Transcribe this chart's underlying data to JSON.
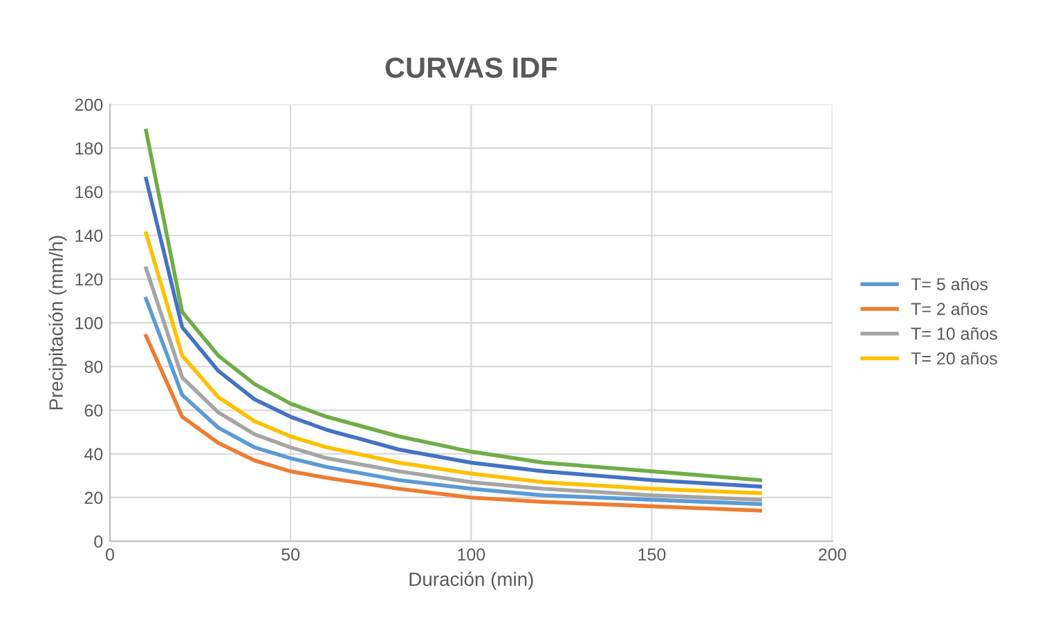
{
  "chart_data": {
    "type": "line",
    "title": "CURVAS IDF",
    "xlabel": "Duración (min)",
    "ylabel": "Precipitación (mm/h)",
    "x": [
      10,
      20,
      30,
      40,
      50,
      60,
      80,
      100,
      120,
      150,
      180
    ],
    "series": [
      {
        "name": "T= 5 años",
        "color": "#5b9bd5",
        "values": [
          111,
          67,
          52,
          43,
          38,
          34,
          28,
          24,
          21,
          19,
          17
        ]
      },
      {
        "name": "T= 2 años",
        "color": "#ed7d31",
        "values": [
          94,
          57,
          45,
          37,
          32,
          29,
          24,
          20,
          18,
          16,
          14
        ]
      },
      {
        "name": "T= 10 años",
        "color": "#a5a5a5",
        "values": [
          125,
          75,
          59,
          49,
          43,
          38,
          32,
          27,
          24,
          21,
          19
        ]
      },
      {
        "name": "T= 20 años",
        "color": "#ffc000",
        "values": [
          141,
          85,
          66,
          55,
          48,
          43,
          36,
          31,
          27,
          24,
          22
        ]
      },
      {
        "color": "#4472c4",
        "values": [
          166,
          98,
          78,
          65,
          57,
          51,
          42,
          36,
          32,
          28,
          25
        ]
      },
      {
        "color": "#70ad47",
        "values": [
          188,
          105,
          85,
          72,
          63,
          57,
          48,
          41,
          36,
          32,
          28
        ]
      }
    ],
    "xlim": [
      0,
      200
    ],
    "xticks": [
      0,
      50,
      100,
      150,
      200
    ],
    "ylim": [
      0,
      200
    ],
    "yticks": [
      0,
      20,
      40,
      60,
      80,
      100,
      120,
      140,
      160,
      180,
      200
    ],
    "grid": true,
    "legend": "right",
    "marker": "none",
    "line_style": "solid"
  }
}
